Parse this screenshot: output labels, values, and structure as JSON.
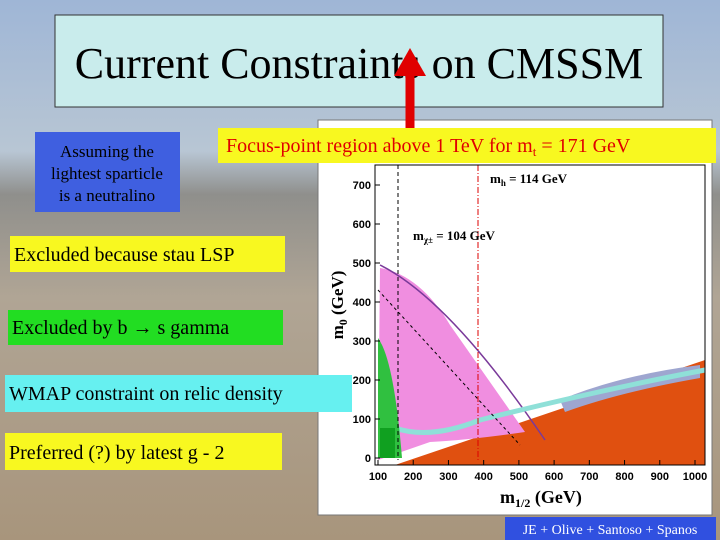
{
  "title": "Current Constraints on CMSSM",
  "note": {
    "lines": [
      "Assuming the",
      "lightest sparticle",
      "is a neutralino"
    ]
  },
  "focus_point": {
    "prefix": "Focus-point region above 1 TeV for m",
    "subscript": "t",
    "suffix": " = 171 GeV"
  },
  "legend": [
    {
      "label": "Excluded because stau LSP"
    },
    {
      "label": "Excluded by b → s gamma"
    },
    {
      "label": "WMAP constraint on relic density"
    },
    {
      "label": "Preferred (?) by latest g - 2"
    }
  ],
  "plot": {
    "x_label": {
      "main": "m",
      "sub": "1/2",
      "unit": " (GeV)"
    },
    "y_label": {
      "main": "m",
      "sub": "0",
      "unit": " (GeV)"
    },
    "xticks": [
      100,
      200,
      300,
      400,
      500,
      600,
      700,
      800,
      900,
      1000
    ],
    "yticks": [
      0,
      100,
      200,
      300,
      400,
      500,
      600,
      700
    ],
    "annotations": [
      {
        "main": "m",
        "sub": "h",
        "rest": " = 114 GeV"
      },
      {
        "main": "m",
        "sub": "χ±",
        "rest": " = 104 GeV"
      }
    ]
  },
  "credit": "JE + Olive + Santoso + Spanos"
}
